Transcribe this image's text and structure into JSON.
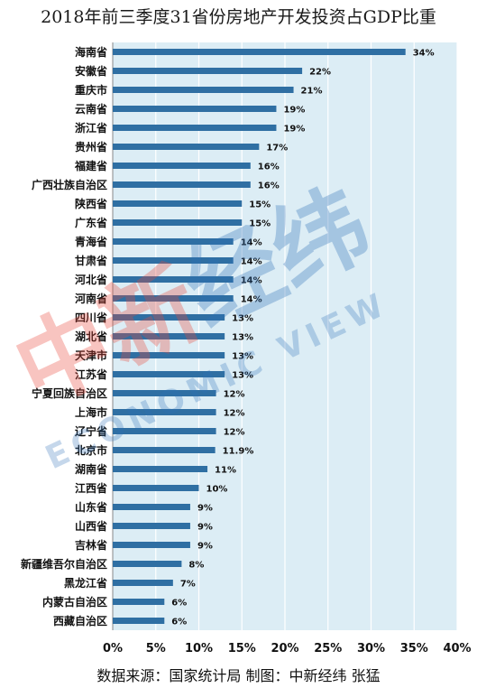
{
  "title": "2018年前三季度31省份房地产开发投资占GDP比重",
  "source": "数据来源：国家统计局     制图：中新经纬 张猛",
  "watermark": {
    "cn": "中新经纬",
    "en": "ECONOMIC VIEW",
    "colors": {
      "red": "#e8493c",
      "blue": "#2f6fb6"
    }
  },
  "colors": {
    "bar": "#2f6fa3",
    "plot_bg": "#dcedf5",
    "grid": "#ffffff"
  },
  "chart_data": {
    "type": "bar",
    "orientation": "horizontal",
    "title": "2018年前三季度31省份房地产开发投资占GDP比重",
    "categories": [
      "海南省",
      "安徽省",
      "重庆市",
      "云南省",
      "浙江省",
      "贵州省",
      "福建省",
      "广西壮族自治区",
      "陕西省",
      "广东省",
      "青海省",
      "甘肃省",
      "河北省",
      "河南省",
      "四川省",
      "湖北省",
      "天津市",
      "江苏省",
      "宁夏回族自治区",
      "上海市",
      "辽宁省",
      "北京市",
      "湖南省",
      "江西省",
      "山东省",
      "山西省",
      "吉林省",
      "新疆维吾尔自治区",
      "黑龙江省",
      "内蒙古自治区",
      "西藏自治区"
    ],
    "values": [
      34,
      22,
      21,
      19,
      19,
      17,
      16,
      16,
      15,
      15,
      14,
      14,
      14,
      14,
      13,
      13,
      13,
      13,
      12,
      12,
      12,
      11.9,
      11,
      10,
      9,
      9,
      9,
      8,
      7,
      6,
      6
    ],
    "value_labels": [
      "34%",
      "22%",
      "21%",
      "19%",
      "19%",
      "17%",
      "16%",
      "16%",
      "15%",
      "15%",
      "14%",
      "14%",
      "14%",
      "14%",
      "13%",
      "13%",
      "13%",
      "13%",
      "12%",
      "12%",
      "12%",
      "11.9%",
      "11%",
      "10%",
      "9%",
      "9%",
      "9%",
      "8%",
      "7%",
      "6%",
      "6%"
    ],
    "xlim": [
      0,
      40
    ],
    "xticks": [
      0,
      5,
      10,
      15,
      20,
      25,
      30,
      35,
      40
    ],
    "xtick_labels": [
      "0%",
      "5%",
      "10%",
      "15%",
      "20%",
      "25%",
      "30%",
      "35%",
      "40%"
    ],
    "grid": "vertical"
  }
}
